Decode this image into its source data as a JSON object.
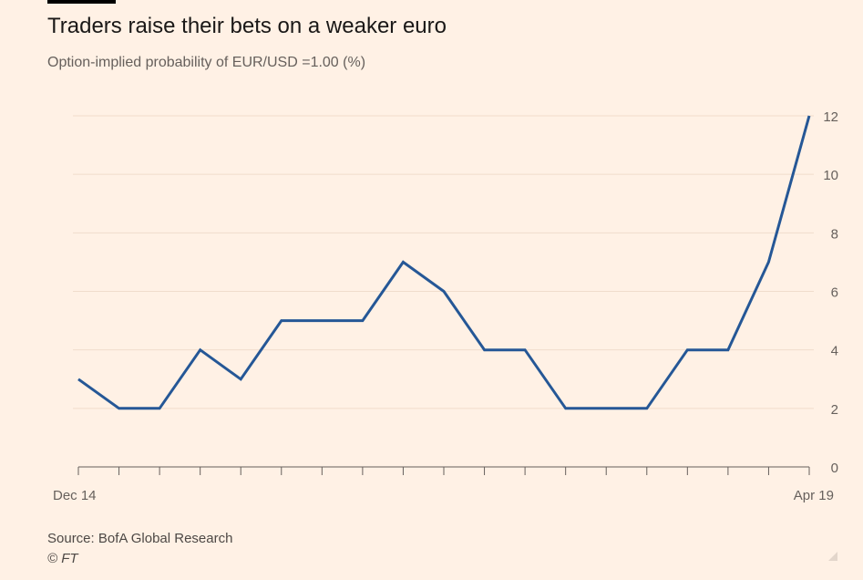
{
  "header": {
    "title": "Traders raise their bets on a weaker euro",
    "subtitle": "Option-implied probability of EUR/USD =1.00 (%)"
  },
  "footer": {
    "source": "Source: BofA Global Research",
    "copyright": "© FT"
  },
  "colors": {
    "line": "#255796",
    "grid": "#f0ddcc",
    "axis": "#66605c",
    "tick_text": "#66605c",
    "background": "#fff1e5"
  },
  "chart_data": {
    "type": "line",
    "title": "Traders raise their bets on a weaker euro",
    "subtitle": "Option-implied probability of EUR/USD =1.00 (%)",
    "x_tick_labels": [
      "Dec 14",
      "Apr 19"
    ],
    "x_tick_count": 19,
    "ylim": [
      0,
      12
    ],
    "y_ticks": [
      0,
      2,
      4,
      6,
      8,
      10,
      12
    ],
    "y_axis_side": "right",
    "grid": "horizontal",
    "series": [
      {
        "values": [
          3,
          2,
          2,
          4,
          3,
          5,
          5,
          5,
          7,
          6,
          4,
          4,
          2,
          2,
          2,
          4,
          4,
          7,
          12
        ]
      }
    ]
  }
}
